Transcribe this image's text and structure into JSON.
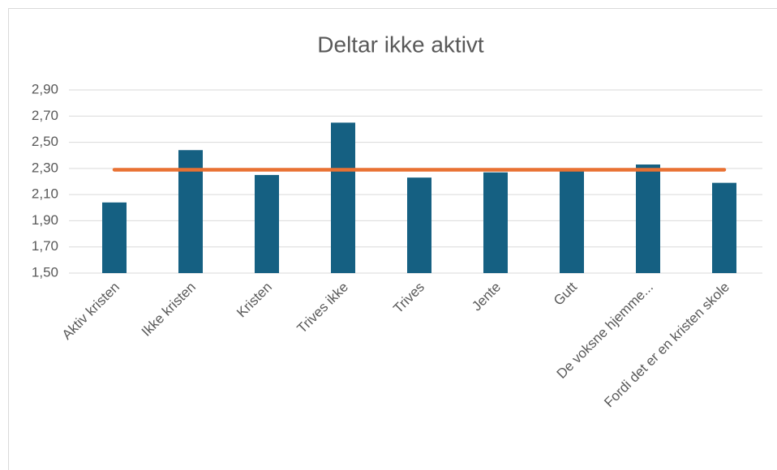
{
  "chart_data": {
    "type": "bar",
    "title": "Deltar ikke aktivt",
    "categories": [
      "Aktiv kristen",
      "Ikke kristen",
      "Kristen",
      "Trives ikke",
      "Trives",
      "Jente",
      "Gutt",
      "De voksne hjemme...",
      "Fordi det er en kristen skole"
    ],
    "series": [
      {
        "color": "#156082",
        "values": [
          2.04,
          2.44,
          2.25,
          2.65,
          2.23,
          2.27,
          2.28,
          2.33,
          2.19
        ]
      },
      {
        "type": "line",
        "color": "#e97132",
        "values": [
          2.29,
          2.29,
          2.29,
          2.29,
          2.29,
          2.29,
          2.29,
          2.29,
          2.29
        ]
      }
    ],
    "ylim": [
      1.5,
      2.9
    ],
    "yticks": [
      {
        "value": 1.5,
        "label": "1,50"
      },
      {
        "value": 1.7,
        "label": "1,70"
      },
      {
        "value": 1.9,
        "label": "1,90"
      },
      {
        "value": 2.1,
        "label": "2,10"
      },
      {
        "value": 2.3,
        "label": "2,30"
      },
      {
        "value": 2.5,
        "label": "2,50"
      },
      {
        "value": 2.7,
        "label": "2,70"
      },
      {
        "value": 2.9,
        "label": "2,90"
      }
    ],
    "grid": true
  }
}
